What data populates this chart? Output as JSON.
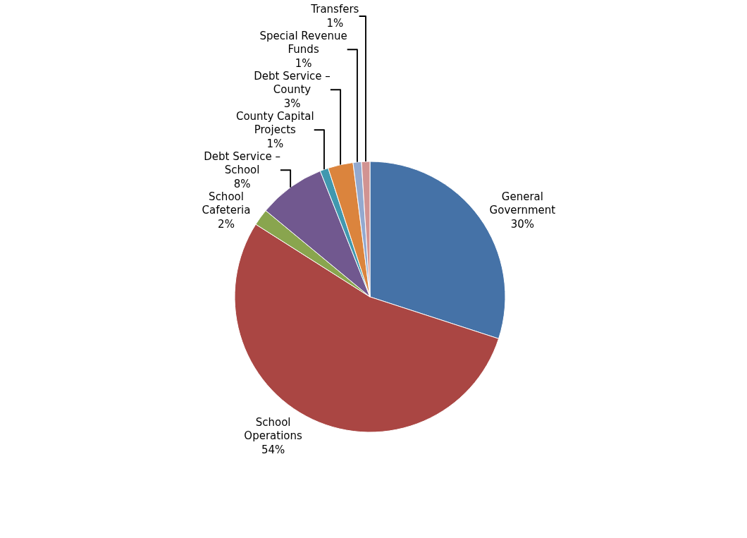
{
  "chart_data": {
    "type": "pie",
    "categories": [
      "General Government",
      "School Operations",
      "School Cafeteria",
      "Debt Service – School",
      "County Capital Projects",
      "Debt Service – County",
      "Special Revenue Funds",
      "Transfers"
    ],
    "values": [
      30,
      54,
      2,
      8,
      1,
      3,
      1,
      1
    ],
    "value_labels": [
      "30%",
      "54%",
      "2%",
      "8%",
      "1%",
      "3%",
      "1%",
      "1%"
    ],
    "colors": [
      "#4572a7",
      "#aa4643",
      "#89a54e",
      "#71588f",
      "#4198af",
      "#db843d",
      "#93a9cf",
      "#d19392"
    ],
    "legend": false
  }
}
